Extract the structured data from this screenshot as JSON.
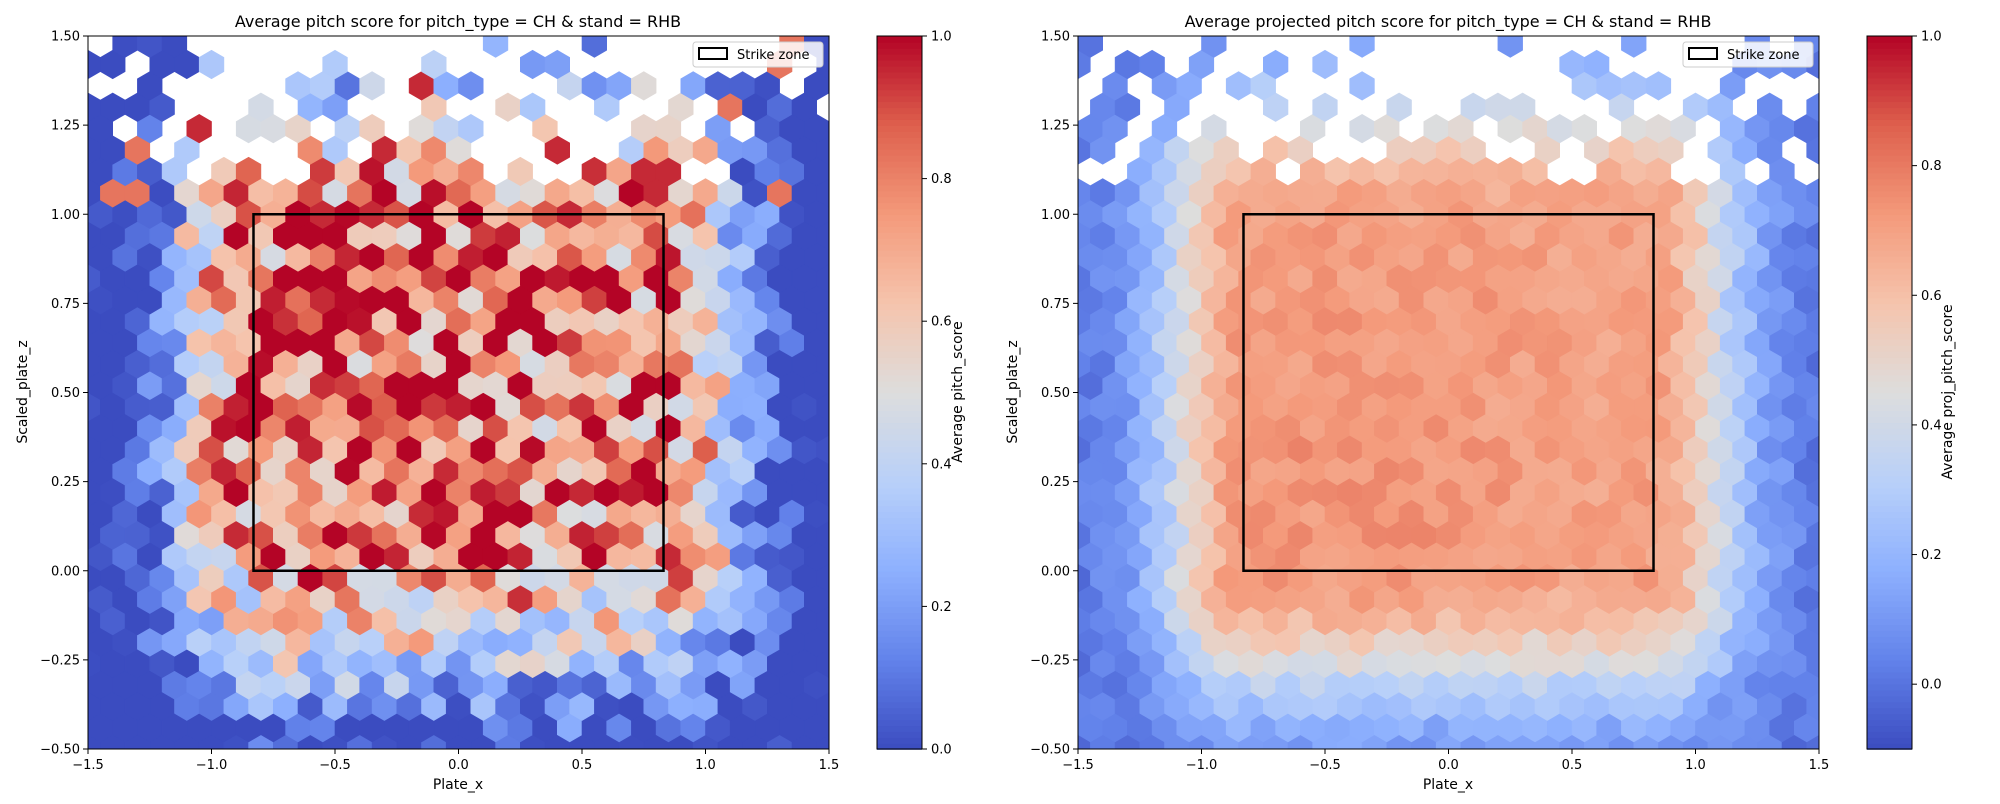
{
  "chart_data": [
    {
      "type": "heatmap",
      "subtype": "hexbin",
      "title": "Average pitch score for pitch_type = CH & stand = RHB",
      "xlabel": "Plate_x",
      "ylabel": "Scaled_plate_z",
      "colorbar_label": "Average pitch_score",
      "colormap": "coolwarm",
      "color_range": [
        0.0,
        1.0
      ],
      "xlim": [
        -1.5,
        1.5
      ],
      "ylim": [
        -0.5,
        1.5
      ],
      "xticks": [
        "−1.5",
        "−1.0",
        "−0.5",
        "0.0",
        "0.5",
        "1.0",
        "1.5"
      ],
      "yticks": [
        "−0.50",
        "−0.25",
        "0.00",
        "0.25",
        "0.50",
        "0.75",
        "1.00",
        "1.25",
        "1.50"
      ],
      "colorbar_ticks": [
        "0.0",
        "0.2",
        "0.4",
        "0.6",
        "0.8",
        "1.0"
      ],
      "strike_zone": {
        "x": [
          -0.83,
          0.83
        ],
        "y": [
          0.0,
          1.0
        ]
      },
      "legend": {
        "label": "Strike zone",
        "placement": "top-right"
      },
      "pattern": "noisy; high (~0.7-1.0) inside strike zone especially upper-left, low (~0-0.2) outside, sparse/missing bins above 1.1"
    },
    {
      "type": "heatmap",
      "subtype": "hexbin",
      "title": "Average projected pitch score for pitch_type = CH & stand = RHB",
      "xlabel": "Plate_x",
      "ylabel": "Scaled_plate_z",
      "colorbar_label": "Average proj_pitch_score",
      "colormap": "coolwarm",
      "color_range": [
        -0.1,
        1.0
      ],
      "xlim": [
        -1.5,
        1.5
      ],
      "ylim": [
        -0.5,
        1.5
      ],
      "xticks": [
        "−1.5",
        "−1.0",
        "−0.5",
        "0.0",
        "0.5",
        "1.0",
        "1.5"
      ],
      "yticks": [
        "−0.50",
        "−0.25",
        "0.00",
        "0.25",
        "0.50",
        "0.75",
        "1.00",
        "1.25",
        "1.50"
      ],
      "colorbar_ticks": [
        "0.0",
        "0.2",
        "0.4",
        "0.6",
        "0.8",
        "1.0"
      ],
      "strike_zone": {
        "x": [
          -0.83,
          0.83
        ],
        "y": [
          0.0,
          1.0
        ]
      },
      "legend": {
        "label": "Strike zone",
        "placement": "top-right"
      },
      "pattern": "smooth; ~0.7 inside strike zone, decreasing to ~0.0 at edges, sparse/missing bins above 1.1"
    }
  ]
}
